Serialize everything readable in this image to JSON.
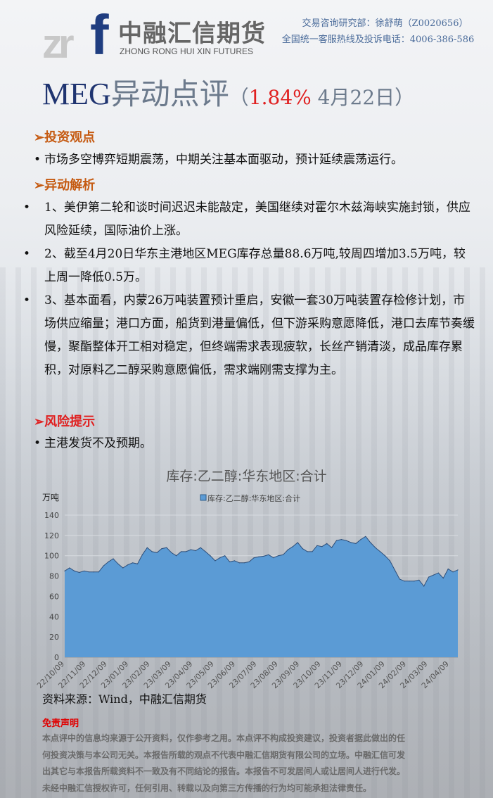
{
  "header": {
    "logo_mark": "zrf",
    "logo_cn": "中融汇信期货",
    "logo_en": "ZHONG RONG HUI XIN FUTURES",
    "dept": "交易咨询研究部：徐舒萌（Z0020656）",
    "hotline": "全国统一客服热线及投诉电话：4006-386-586"
  },
  "title": {
    "product": "MEG",
    "text": "异动点评",
    "open": "（",
    "change": "1.84%",
    "date": " 4月22日",
    "close": "）"
  },
  "sections": {
    "view": {
      "heading": "➢投资观点",
      "items": [
        "市场多空博弈短期震荡，中期关注基本面驱动，预计延续震荡运行。"
      ]
    },
    "analysis": {
      "heading": "➢异动解析",
      "items": [
        "1、美伊第二轮和谈时间迟迟未能敲定，美国继续对霍尔木兹海峡实施封锁，供应风险延续，国际油价上涨。",
        "2、截至4月20日华东主港地区MEG库存总量88.6万吨,较周四增加3.5万吨，较上周一降低0.5万。",
        "3、基本面看，内蒙26万吨装置预计重启，安徽一套30万吨装置存检修计划，市场供应缩量；港口方面，船货到港量偏低，但下游采购意愿降低，港口去库节奏缓慢，聚酯整体开工相对稳定，但终端需求表现疲软，长丝产销清淡，成品库存累积，对原料乙二醇采购意愿偏低，需求端刚需支撑为主。"
      ]
    },
    "risk": {
      "heading": "➢风险提示",
      "items": [
        "主港发货不及预期。"
      ]
    }
  },
  "chart_data": {
    "type": "area",
    "title": "库存:乙二醇:华东地区:合计",
    "ylabel": "万吨",
    "legend_position": "top",
    "ylim": [
      0,
      140
    ],
    "yticks": [
      0,
      20,
      40,
      60,
      80,
      100,
      120,
      140
    ],
    "grid": true,
    "color": "#5b9bd5",
    "xticks": [
      "22/10/09",
      "22/11/09",
      "22/12/09",
      "23/01/09",
      "23/02/09",
      "23/03/09",
      "23/04/09",
      "23/05/09",
      "23/06/09",
      "23/07/09",
      "23/08/09",
      "23/09/09",
      "23/10/09",
      "23/11/09",
      "23/12/09",
      "24/01/09",
      "24/02/09",
      "24/03/09",
      "24/04/09"
    ],
    "series": [
      {
        "name": "库存:乙二醇:华东地区:合计",
        "values": [
          85,
          88,
          85,
          83.5,
          85,
          84,
          84,
          84,
          90,
          94,
          97,
          92,
          88,
          91,
          93,
          92,
          101,
          108,
          104,
          103,
          107,
          108,
          103,
          100,
          104,
          104,
          106,
          105,
          108,
          104,
          100,
          95,
          98,
          100,
          94,
          95,
          93,
          93,
          94,
          98,
          99,
          99.5,
          101,
          98,
          100,
          101,
          106,
          109,
          113,
          107,
          104,
          104,
          110,
          109,
          112,
          108,
          115,
          116,
          115,
          113,
          112,
          116,
          119,
          113,
          108,
          104,
          100,
          95,
          86,
          77,
          75,
          75,
          75,
          76,
          70,
          79,
          81,
          83,
          78,
          87,
          84,
          86
        ]
      }
    ]
  },
  "source": "资料来源：Wind，中融汇信期货",
  "disclaimer": {
    "heading": "免责声明",
    "lines": [
      "本点评中的信息均来源于公开资料，仅作参考之用。本点评不构成投资建议，投资者据此做出的任",
      "何投资决策与本公司无关。本报告所载的观点不代表中融汇信期货有限公司的立场。中融汇信可发",
      "出其它与本报告所载资料不一致及有不同结论的报告。本报告不可发居间人或让居间人进行代发。",
      "未经中融汇信授权许可，任何引用、转载以及向第三方传播的行为均可能承担法律责任。"
    ]
  }
}
